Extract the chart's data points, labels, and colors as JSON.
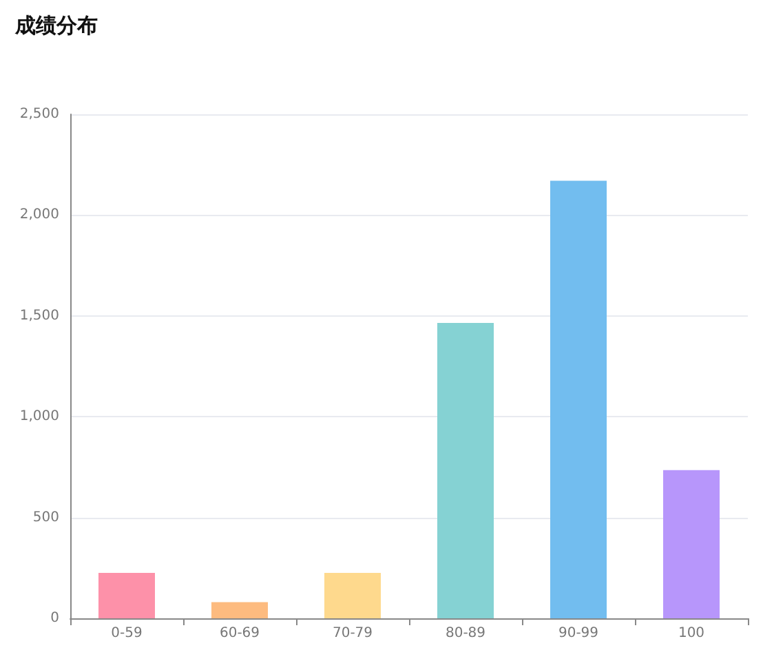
{
  "chart_data": {
    "type": "bar",
    "title": "成绩分布",
    "categories": [
      "0-59",
      "60-69",
      "70-79",
      "80-89",
      "90-99",
      "100"
    ],
    "values": [
      225,
      80,
      225,
      1465,
      2170,
      735
    ],
    "colors": [
      "#fd91a9",
      "#fdbb7f",
      "#fed98d",
      "#85d2d3",
      "#72bdef",
      "#b796fb"
    ],
    "ylim": [
      0,
      2500
    ],
    "yticks": [
      {
        "value": 0,
        "label": "0"
      },
      {
        "value": 500,
        "label": "500"
      },
      {
        "value": 1000,
        "label": "1,000"
      },
      {
        "value": 1500,
        "label": "1,500"
      },
      {
        "value": 2000,
        "label": "2,000"
      },
      {
        "value": 2500,
        "label": "2,500"
      }
    ],
    "grid": "y"
  }
}
